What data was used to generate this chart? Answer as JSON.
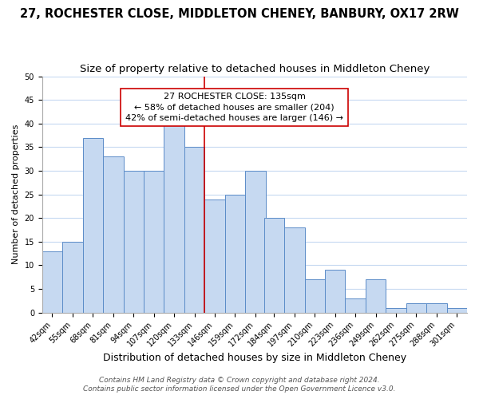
{
  "title": "27, ROCHESTER CLOSE, MIDDLETON CHENEY, BANBURY, OX17 2RW",
  "subtitle": "Size of property relative to detached houses in Middleton Cheney",
  "xlabel": "Distribution of detached houses by size in Middleton Cheney",
  "ylabel": "Number of detached properties",
  "bar_labels": [
    "42sqm",
    "55sqm",
    "68sqm",
    "81sqm",
    "94sqm",
    "107sqm",
    "120sqm",
    "133sqm",
    "146sqm",
    "159sqm",
    "172sqm",
    "184sqm",
    "197sqm",
    "210sqm",
    "223sqm",
    "236sqm",
    "249sqm",
    "262sqm",
    "275sqm",
    "288sqm",
    "301sqm"
  ],
  "bar_values": [
    13,
    15,
    37,
    33,
    30,
    30,
    40,
    35,
    24,
    25,
    30,
    20,
    18,
    7,
    9,
    3,
    7,
    1,
    2,
    2,
    1
  ],
  "bar_edges": [
    42,
    55,
    68,
    81,
    94,
    107,
    120,
    133,
    146,
    159,
    172,
    184,
    197,
    210,
    223,
    236,
    249,
    262,
    275,
    288,
    301
  ],
  "bar_color": "#c6d9f1",
  "bar_edge_color": "#5b8cc8",
  "grid_color": "#c6d9f1",
  "vline_x_idx": 7,
  "vline_color": "#cc0000",
  "annotation_title": "27 ROCHESTER CLOSE: 135sqm",
  "annotation_line1": "← 58% of detached houses are smaller (204)",
  "annotation_line2": "42% of semi-detached houses are larger (146) →",
  "annotation_box_color": "#ffffff",
  "annotation_box_edge": "#cc0000",
  "ylim": [
    0,
    50
  ],
  "yticks": [
    0,
    5,
    10,
    15,
    20,
    25,
    30,
    35,
    40,
    45,
    50
  ],
  "footer1": "Contains HM Land Registry data © Crown copyright and database right 2024.",
  "footer2": "Contains public sector information licensed under the Open Government Licence v3.0.",
  "title_fontsize": 10.5,
  "subtitle_fontsize": 9.5,
  "xlabel_fontsize": 9,
  "ylabel_fontsize": 8,
  "tick_fontsize": 7,
  "annotation_fontsize": 8,
  "footer_fontsize": 6.5
}
